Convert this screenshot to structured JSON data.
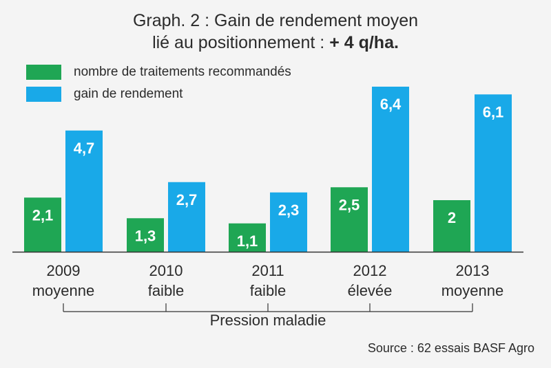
{
  "title": {
    "line1": "Graph. 2 : Gain de rendement moyen",
    "line2_prefix": "lié au positionnement : ",
    "line2_highlight": "+ 4 q/ha."
  },
  "colors": {
    "green": "#1fa654",
    "blue": "#19a9e8",
    "axis": "#333333",
    "label_text": "#ffffff"
  },
  "chart_data": {
    "type": "bar",
    "categories": [
      "2009",
      "2010",
      "2011",
      "2012",
      "2013"
    ],
    "subcategories": [
      "moyenne",
      "faible",
      "faible",
      "élevée",
      "moyenne"
    ],
    "series": [
      {
        "name": "nombre de traitements recommandés",
        "color": "#1fa654",
        "values": [
          2.1,
          1.3,
          1.1,
          2.5,
          2
        ],
        "labels": [
          "2,1",
          "1,3",
          "1,1",
          "2,5",
          "2"
        ]
      },
      {
        "name": "gain de rendement",
        "color": "#19a9e8",
        "values": [
          4.7,
          2.7,
          2.3,
          6.4,
          6.1
        ],
        "labels": [
          "4,7",
          "2,7",
          "2,3",
          "6,4",
          "6,1"
        ]
      }
    ],
    "xlabel": "Pression maladie",
    "ylabel": "",
    "ylim": [
      0,
      6.4
    ],
    "grid": false,
    "legend_position": "top-left"
  },
  "source": "Source : 62 essais BASF Agro"
}
